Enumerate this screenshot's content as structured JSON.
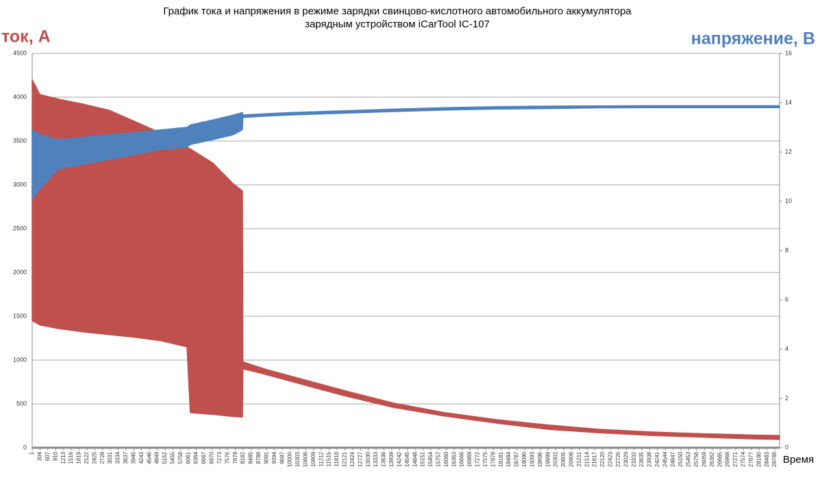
{
  "chart_data": {
    "type": "band",
    "title": [
      "График тока и напряжения в режиме зарядки свинцово-кислотного автомобильного аккумулятора",
      "зарядным устройством iCarTool IC-107"
    ],
    "y_label": "ток, А",
    "y2_label": "напряжение, В",
    "x_label": "Время",
    "x": [
      1,
      300,
      1000,
      2000,
      3000,
      4000,
      5000,
      6000,
      6130,
      7000,
      7800,
      8150,
      8170,
      9000,
      10000,
      12000,
      14000,
      16000,
      18000,
      20000,
      22000,
      24000,
      26000,
      28000,
      28970
    ],
    "series": [
      {
        "color": "#c0504d",
        "axis": "y",
        "values": [
          4200,
          4030,
          3980,
          3920,
          3850,
          3720,
          3590,
          3430,
          3410,
          3250,
          3010,
          2930,
          980,
          900,
          820,
          660,
          510,
          400,
          320,
          260,
          210,
          180,
          160,
          145,
          140
        ]
      },
      {
        "color": "#c0504d",
        "axis": "y",
        "values": [
          1450,
          1400,
          1360,
          1320,
          1290,
          1260,
          1220,
          1150,
          400,
          380,
          355,
          350,
          900,
          840,
          760,
          600,
          460,
          360,
          280,
          210,
          170,
          140,
          120,
          100,
          95
        ]
      },
      {
        "color": "#4f81bd",
        "axis": "y2",
        "values": [
          12.9,
          12.7,
          12.5,
          12.6,
          12.7,
          12.8,
          12.9,
          13.0,
          13.1,
          13.3,
          13.5,
          13.6,
          13.5,
          13.55,
          13.6,
          13.67,
          13.74,
          13.8,
          13.84,
          13.86,
          13.87,
          13.88,
          13.88,
          13.88,
          13.88
        ]
      },
      {
        "color": "#4f81bd",
        "axis": "y2",
        "values": [
          10.1,
          10.5,
          11.3,
          11.5,
          11.7,
          11.9,
          12.1,
          12.2,
          12.3,
          12.5,
          12.7,
          12.9,
          13.4,
          13.45,
          13.5,
          13.57,
          13.64,
          13.7,
          13.74,
          13.76,
          13.79,
          13.8,
          13.8,
          13.8,
          13.8
        ]
      }
    ],
    "xlim": [
      1,
      28970
    ],
    "xticks": [
      1,
      304,
      607,
      910,
      1213,
      1516,
      1819,
      2122,
      2425,
      2728,
      3031,
      3334,
      3637,
      3940,
      4243,
      4546,
      4849,
      5152,
      5455,
      5758,
      6061,
      6364,
      6667,
      6970,
      7273,
      7576,
      7879,
      8182,
      8485,
      8788,
      9091,
      9394,
      9697,
      10000,
      10303,
      10606,
      10909,
      11212,
      11515,
      11818,
      12121,
      12424,
      12727,
      13030,
      13333,
      13636,
      13939,
      14242,
      14545,
      14848,
      15151,
      15454,
      15757,
      16060,
      16363,
      16666,
      16969,
      17272,
      17575,
      17878,
      18181,
      18484,
      18787,
      19090,
      19393,
      19696,
      19999,
      20302,
      20605,
      20908,
      21211,
      21514,
      21817,
      22120,
      22423,
      22726,
      23029,
      23332,
      23635,
      23938,
      24241,
      24544,
      24847,
      25150,
      25453,
      25756,
      26059,
      26362,
      26665,
      26968,
      27271,
      27574,
      27877,
      28180,
      28483,
      28786
    ],
    "ylim": [
      0,
      4500
    ],
    "yticks": [
      0,
      500,
      1000,
      1500,
      2000,
      2500,
      3000,
      3500,
      4000,
      4500
    ],
    "y2lim": [
      0,
      16
    ],
    "y2ticks": [
      0,
      2,
      4,
      6,
      8,
      10,
      12,
      14,
      16
    ],
    "grid": true
  }
}
